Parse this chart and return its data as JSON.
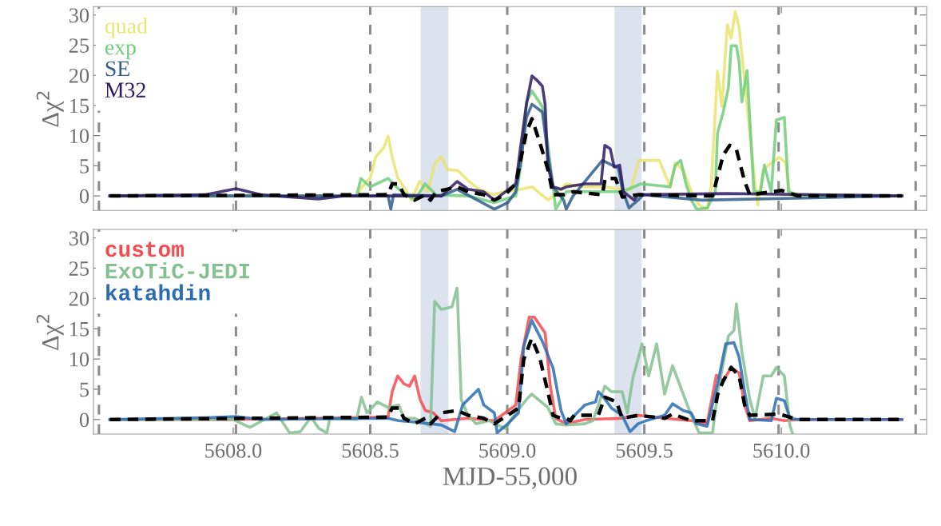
{
  "chart_data": [
    {
      "type": "line",
      "ylabel": "Δχ$^{2}$",
      "xlim": [
        5607.49,
        5610.53
      ],
      "ylim": [
        -2.4,
        31.4
      ],
      "xticks": [
        {
          "value": 5608,
          "label": null
        },
        {
          "value": 5608.5,
          "label": null
        },
        {
          "value": 5609,
          "label": null
        },
        {
          "value": 5609.5,
          "label": null
        },
        {
          "value": 5610,
          "label": null
        }
      ],
      "yticks": [
        0,
        5,
        10,
        15,
        20,
        25,
        30
      ],
      "tick_labels": "y",
      "legend": "top left",
      "ref_lines": [
        {
          "axis": "x",
          "value": 5607.51,
          "color": "#8c8c8c",
          "line_style": "dashed"
        },
        {
          "axis": "x",
          "value": 5608.01,
          "color": "#8c8c8c",
          "line_style": "dashed"
        },
        {
          "axis": "x",
          "value": 5608.5,
          "color": "#8c8c8c",
          "line_style": "dashed"
        },
        {
          "axis": "x",
          "value": 5609.0,
          "color": "#8c8c8c",
          "line_style": "dashed"
        },
        {
          "axis": "x",
          "value": 5609.5,
          "color": "#8c8c8c",
          "line_style": "dashed"
        },
        {
          "axis": "x",
          "value": 5609.99,
          "color": "#8c8c8c",
          "line_style": "dashed"
        },
        {
          "axis": "x",
          "value": 5610.49,
          "color": "#8c8c8c",
          "line_style": "dashed"
        }
      ],
      "bands": [
        {
          "axis": "x",
          "from": 5608.685,
          "to": 5608.784,
          "color": "#dce3ef"
        },
        {
          "axis": "x",
          "from": 5609.393,
          "to": 5609.489,
          "color": "#dce3ef"
        }
      ],
      "series": [
        {
          "name": "quad",
          "color": "#e9e56f",
          "x": [
            5607.55,
            5608.0,
            5608.45,
            5608.47,
            5608.5,
            5608.52,
            5608.55,
            5608.565,
            5608.58,
            5608.6,
            5608.63,
            5608.65,
            5608.68,
            5608.71,
            5608.735,
            5608.76,
            5608.78,
            5608.82,
            5608.86,
            5608.9,
            5608.95,
            5608.99,
            5609.05,
            5609.09,
            5609.15,
            5609.215,
            5609.28,
            5609.35,
            5609.45,
            5609.48,
            5609.555,
            5609.594,
            5609.613,
            5609.643,
            5609.672,
            5609.7,
            5609.73,
            5609.744,
            5609.767,
            5609.783,
            5609.803,
            5609.817,
            5609.832,
            5609.846,
            5609.866,
            5609.885,
            5609.905,
            5609.914,
            5609.934,
            5609.953,
            5609.992,
            5610.016,
            5610.031,
            5610.1,
            5610.44
          ],
          "values": [
            0,
            0,
            0,
            1.5,
            3,
            6.5,
            8,
            9.9,
            6.5,
            3,
            1,
            -0.7,
            2.4,
            0.7,
            5.3,
            6.5,
            4.4,
            4.2,
            2.4,
            1,
            0.2,
            0.7,
            1.1,
            1.5,
            -0.7,
            2,
            1.5,
            1.5,
            1,
            5.9,
            5.9,
            1.5,
            5.5,
            4.2,
            0.7,
            -1.5,
            -2.2,
            1.5,
            20.7,
            14.8,
            28.4,
            26.2,
            30.6,
            27.9,
            19.2,
            10.4,
            1.5,
            -1.5,
            4.2,
            5.1,
            6.4,
            5.5,
            0.2,
            0,
            0
          ]
        },
        {
          "name": "exp",
          "color": "#70cc7d",
          "x": [
            5607.55,
            5608.0,
            5608.45,
            5608.466,
            5608.5,
            5608.565,
            5608.604,
            5608.662,
            5608.7,
            5608.74,
            5608.857,
            5608.953,
            5609.031,
            5609.05,
            5609.07,
            5609.09,
            5609.128,
            5609.148,
            5609.167,
            5609.177,
            5609.215,
            5609.347,
            5609.42,
            5609.487,
            5609.594,
            5609.613,
            5609.633,
            5609.652,
            5609.672,
            5609.691,
            5609.73,
            5609.759,
            5609.767,
            5609.788,
            5609.807,
            5609.817,
            5609.836,
            5609.846,
            5609.856,
            5609.875,
            5609.885,
            5609.9,
            5609.924,
            5609.938,
            5609.963,
            5609.982,
            5610.011,
            5610.026,
            5610.06,
            5610.44
          ],
          "values": [
            0,
            0,
            0,
            2.9,
            1.5,
            2.9,
            1.1,
            -0.7,
            2,
            0.2,
            0,
            -1.1,
            0,
            5.1,
            15.6,
            17.4,
            14.8,
            8.6,
            1.5,
            -2.2,
            0.7,
            0.7,
            0.7,
            2,
            1.5,
            5.1,
            5.9,
            2,
            -0.7,
            -2.2,
            -2,
            0.7,
            10.4,
            13.9,
            18,
            24.9,
            24.9,
            22.2,
            15.6,
            20.8,
            12.6,
            0.7,
            0.7,
            5.1,
            0.7,
            12.6,
            13,
            0.7,
            0.2,
            0
          ]
        },
        {
          "name": "SE",
          "color": "#2f5d8a",
          "x": [
            5607.55,
            5608.0,
            5608.45,
            5608.565,
            5608.575,
            5608.585,
            5608.76,
            5608.817,
            5608.953,
            5609.002,
            5609.031,
            5609.05,
            5609.07,
            5609.09,
            5609.128,
            5609.148,
            5609.167,
            5609.206,
            5609.215,
            5609.24,
            5609.347,
            5609.405,
            5609.42,
            5609.444,
            5609.477,
            5609.497,
            5609.71,
            5610.44
          ],
          "values": [
            0,
            0,
            0,
            0,
            -2.2,
            0.2,
            0,
            1.1,
            -2.2,
            -1.1,
            0.7,
            6,
            13,
            15.2,
            13.9,
            6.9,
            1.5,
            -0.7,
            -2.2,
            0,
            5.9,
            4.6,
            1.1,
            -2,
            -0.7,
            0.2,
            -0.7,
            0
          ]
        },
        {
          "name": "M32",
          "color": "#2d1a63",
          "x": [
            5607.55,
            5607.9,
            5608.01,
            5608.1,
            5608.31,
            5608.4,
            5608.76,
            5608.817,
            5608.857,
            5608.914,
            5608.953,
            5609.031,
            5609.05,
            5609.07,
            5609.09,
            5609.108,
            5609.128,
            5609.138,
            5609.148,
            5609.167,
            5609.196,
            5609.215,
            5609.283,
            5609.342,
            5609.356,
            5609.376,
            5609.39,
            5609.41,
            5609.424,
            5609.463,
            5609.477,
            5609.8,
            5610.44
          ],
          "values": [
            0,
            0.2,
            1.2,
            0.2,
            -0.5,
            0,
            0,
            2.4,
            1.1,
            0.7,
            -0.7,
            2,
            8.6,
            15.2,
            19.9,
            19.2,
            18.2,
            15.2,
            5,
            1.5,
            1.1,
            1.5,
            2,
            2,
            8.4,
            7.8,
            4.8,
            5.1,
            0.7,
            -0.7,
            0.2,
            0.4,
            0
          ]
        },
        {
          "color": "#000000",
          "line_style": "dashed",
          "x": [
            5607.55,
            5608.565,
            5608.58,
            5608.604,
            5608.623,
            5608.662,
            5608.701,
            5608.72,
            5608.74,
            5608.779,
            5608.817,
            5608.857,
            5608.914,
            5608.953,
            5608.992,
            5609.031,
            5609.05,
            5609.07,
            5609.09,
            5609.119,
            5609.148,
            5609.167,
            5609.206,
            5609.24,
            5609.347,
            5609.357,
            5609.395,
            5609.42,
            5609.477,
            5609.749,
            5609.768,
            5609.788,
            5609.812,
            5609.836,
            5609.866,
            5609.885,
            5610.002,
            5610.06,
            5610.44
          ],
          "values": [
            0,
            0.2,
            2,
            2,
            0.2,
            -0.7,
            0.2,
            -0.7,
            0.7,
            1.1,
            1.5,
            0.7,
            0.2,
            -0.7,
            0.2,
            2,
            6.2,
            10.6,
            12.8,
            8.8,
            4.4,
            0.2,
            0.2,
            0.7,
            0.2,
            2.9,
            2.9,
            -0.2,
            0.2,
            0,
            3.3,
            6.8,
            8.4,
            7.7,
            2.4,
            0.2,
            0.9,
            0,
            0
          ]
        }
      ]
    },
    {
      "type": "line",
      "xlabel": "MJD-55,000",
      "ylabel": "Δχ$^{2}$",
      "xlim": [
        5607.49,
        5610.53
      ],
      "ylim": [
        -2.4,
        31.4
      ],
      "xticks": [
        {
          "value": 5608,
          "label": "5608.0"
        },
        {
          "value": 5608.5,
          "label": "5608.5"
        },
        {
          "value": 5609,
          "label": "5609.0"
        },
        {
          "value": 5609.5,
          "label": "5609.5"
        },
        {
          "value": 5610,
          "label": "5610.0"
        }
      ],
      "yticks": [
        0,
        5,
        10,
        15,
        20,
        25,
        30
      ],
      "legend": "top left",
      "ref_lines": [
        {
          "axis": "x",
          "value": 5607.51,
          "color": "#8c8c8c",
          "line_style": "dashed"
        },
        {
          "axis": "x",
          "value": 5608.01,
          "color": "#8c8c8c",
          "line_style": "dashed"
        },
        {
          "axis": "x",
          "value": 5608.5,
          "color": "#8c8c8c",
          "line_style": "dashed"
        },
        {
          "axis": "x",
          "value": 5609.0,
          "color": "#8c8c8c",
          "line_style": "dashed"
        },
        {
          "axis": "x",
          "value": 5609.5,
          "color": "#8c8c8c",
          "line_style": "dashed"
        },
        {
          "axis": "x",
          "value": 5609.99,
          "color": "#8c8c8c",
          "line_style": "dashed"
        },
        {
          "axis": "x",
          "value": 5610.49,
          "color": "#8c8c8c",
          "line_style": "dashed"
        }
      ],
      "bands": [
        {
          "axis": "x",
          "from": 5608.685,
          "to": 5608.784,
          "color": "#dce3ef"
        },
        {
          "axis": "x",
          "from": 5609.393,
          "to": 5609.489,
          "color": "#dce3ef"
        }
      ],
      "series": [
        {
          "name": "custom",
          "color": "#f44a50",
          "x": [
            5607.55,
            5608.0,
            5608.565,
            5608.58,
            5608.6,
            5608.623,
            5608.643,
            5608.662,
            5608.682,
            5608.701,
            5608.73,
            5608.759,
            5608.857,
            5608.953,
            5609.031,
            5609.05,
            5609.08,
            5609.099,
            5609.138,
            5609.157,
            5609.177,
            5609.215,
            5609.283,
            5609.419,
            5609.477,
            5609.574,
            5609.671,
            5609.729,
            5609.763,
            5609.788,
            5609.817,
            5609.846,
            5609.866,
            5609.885,
            5609.963,
            5610.011,
            5610.06,
            5610.44
          ],
          "values": [
            0,
            0,
            0.4,
            4.6,
            7.2,
            5.9,
            5.5,
            7.2,
            3.3,
            1.5,
            1.1,
            -0.2,
            0.2,
            -0.2,
            2.4,
            9.9,
            16.9,
            16.9,
            14.3,
            5.5,
            0.2,
            -0.7,
            0,
            0.2,
            0.7,
            0.2,
            -0.2,
            -0.7,
            7.3,
            6.4,
            8.6,
            7.7,
            2.4,
            -0.2,
            0.2,
            -0.2,
            0,
            0
          ]
        },
        {
          "name": "ExoTiC-JEDI",
          "color": "#84c090",
          "x": [
            5607.55,
            5608.0,
            5608.061,
            5608.158,
            5608.206,
            5608.245,
            5608.284,
            5608.313,
            5608.342,
            5608.352,
            5608.45,
            5608.468,
            5608.488,
            5608.526,
            5608.565,
            5608.604,
            5608.623,
            5608.662,
            5608.72,
            5608.735,
            5608.759,
            5608.798,
            5608.817,
            5608.832,
            5608.857,
            5608.886,
            5608.934,
            5608.992,
            5609.031,
            5609.07,
            5609.089,
            5609.148,
            5609.177,
            5609.215,
            5609.283,
            5609.312,
            5609.356,
            5609.38,
            5609.419,
            5609.438,
            5609.458,
            5609.492,
            5609.516,
            5609.545,
            5609.574,
            5609.603,
            5609.642,
            5609.671,
            5609.7,
            5609.749,
            5609.768,
            5609.807,
            5609.827,
            5609.836,
            5609.856,
            5609.885,
            5609.904,
            5609.934,
            5609.963,
            5609.982,
            5610.011,
            5610.031,
            5610.04
          ],
          "values": [
            0,
            0,
            -1.3,
            1.1,
            -2.2,
            -2,
            0.4,
            -1.5,
            -2.2,
            0.2,
            0,
            3.7,
            1.1,
            2.9,
            2,
            2.4,
            0.2,
            0.2,
            -1.1,
            19.5,
            18.2,
            18.6,
            21.7,
            3.3,
            0.7,
            -0.7,
            -0.2,
            -1.5,
            1.1,
            3.3,
            4.2,
            2,
            -0.7,
            -0.9,
            -0.7,
            -0.2,
            5.5,
            4.6,
            4.6,
            1.1,
            6.8,
            12.5,
            7.2,
            12.5,
            4.2,
            8.9,
            4.2,
            0.7,
            -2.2,
            -2.2,
            4.6,
            13.8,
            14.7,
            19.1,
            11.2,
            3.3,
            0.2,
            7.2,
            7.2,
            8.6,
            7.2,
            -0.9,
            -2.2
          ]
        },
        {
          "name": "katahdin",
          "color": "#2b6db4",
          "x": [
            5607.55,
            5607.9,
            5608.01,
            5608.1,
            5608.565,
            5608.604,
            5608.662,
            5608.759,
            5608.808,
            5608.837,
            5608.866,
            5608.895,
            5608.914,
            5608.953,
            5608.963,
            5609.002,
            5609.041,
            5609.06,
            5609.089,
            5609.128,
            5609.167,
            5609.196,
            5609.215,
            5609.283,
            5609.322,
            5609.332,
            5609.351,
            5609.38,
            5609.419,
            5609.448,
            5609.477,
            5609.506,
            5609.574,
            5609.603,
            5609.642,
            5609.671,
            5609.69,
            5609.729,
            5609.768,
            5609.797,
            5609.827,
            5609.846,
            5609.866,
            5609.885,
            5609.963,
            5609.982,
            5610.011,
            5610.031,
            5610.06,
            5610.44
          ],
          "values": [
            0,
            0.3,
            0.5,
            0,
            0.2,
            -0.2,
            -0.4,
            -0.9,
            -2,
            2.4,
            3.7,
            5,
            2.4,
            1.1,
            -2.2,
            -0.7,
            1.1,
            12.1,
            16.4,
            12.9,
            8.5,
            1.5,
            -0.7,
            2.4,
            2.9,
            4.6,
            3.7,
            1.9,
            0.7,
            -2,
            -0.7,
            -0.2,
            0.7,
            2.6,
            1.5,
            1.1,
            -0.7,
            -1.1,
            6,
            12.5,
            12.7,
            10.3,
            4.6,
            0,
            -0.2,
            3.5,
            3.1,
            0.2,
            0,
            0
          ]
        },
        {
          "color": "#000000",
          "line_style": "dashed",
          "x": [
            5607.55,
            5608.565,
            5608.58,
            5608.604,
            5608.623,
            5608.662,
            5608.701,
            5608.72,
            5608.759,
            5608.817,
            5608.857,
            5608.914,
            5608.953,
            5609.002,
            5609.041,
            5609.06,
            5609.089,
            5609.118,
            5609.148,
            5609.167,
            5609.196,
            5609.215,
            5609.23,
            5609.244,
            5609.332,
            5609.356,
            5609.399,
            5609.419,
            5609.477,
            5609.574,
            5609.603,
            5609.671,
            5609.749,
            5609.768,
            5609.788,
            5609.817,
            5609.846,
            5609.866,
            5609.885,
            5609.992,
            5610.06,
            5610.44
          ],
          "values": [
            0,
            0.4,
            1.9,
            1.9,
            0.2,
            -0.7,
            0.2,
            -0.7,
            1.1,
            1.5,
            0.7,
            0.2,
            -0.7,
            0.7,
            1.9,
            9.9,
            13.4,
            10.3,
            4.6,
            0.7,
            0.2,
            0.2,
            -0.2,
            0.7,
            0.7,
            3.7,
            2.9,
            0.2,
            0.7,
            0.2,
            0.9,
            -0.2,
            -0.2,
            4.2,
            6.4,
            8.6,
            7.2,
            2.4,
            0.7,
            0.9,
            0,
            0
          ]
        }
      ]
    }
  ]
}
